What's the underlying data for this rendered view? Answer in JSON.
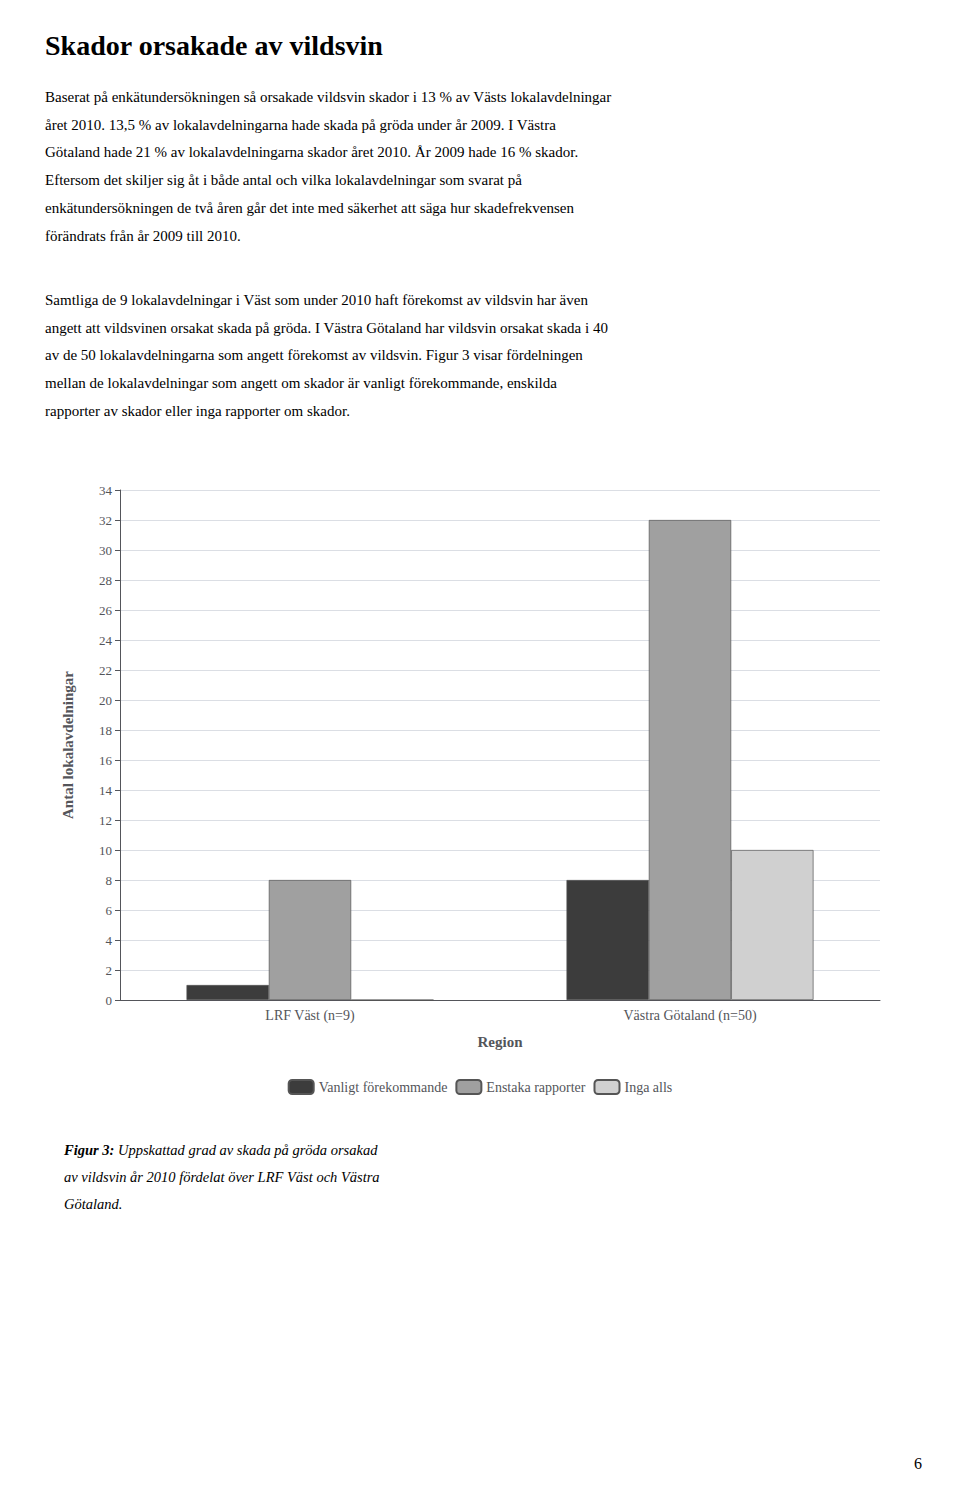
{
  "chart_data": {
    "type": "bar",
    "title": "Skador orsakade av vildsvin",
    "categories": [
      "LRF Väst (n=9)",
      "Västra Götaland (n=50)"
    ],
    "series": [
      {
        "name": "Vanligt förekommande",
        "color": "#3c3c3c",
        "values": [
          1,
          8
        ]
      },
      {
        "name": "Enstaka rapporter",
        "color": "#a0a0a0",
        "values": [
          8,
          32
        ]
      },
      {
        "name": "Inga alls",
        "color": "#d0d0d0",
        "values": [
          0,
          10
        ]
      }
    ],
    "xlabel": "Region",
    "ylabel": "Antal lokalavdelningar",
    "ylim": [
      0,
      34
    ],
    "yticks": [
      0,
      2,
      4,
      6,
      8,
      10,
      12,
      14,
      16,
      18,
      20,
      22,
      24,
      26,
      28,
      30,
      32,
      34
    ],
    "grid": true,
    "legend": "bottom",
    "annotations": [
      [
        "Baserat på enkätundersökningen så orsakade vildsvin skador i 13 % av Västs lokalavdelningar",
        "året 2010. 13,5 % av lokalavdelningarna hade skada på gröda under år 2009. I Västra",
        "Götaland hade 21 % av lokalavdelningarna skador året 2010. År 2009 hade 16 % skador.",
        "Eftersom det skiljer sig åt i både antal och vilka lokalavdelningar som svarat på",
        "enkätundersökningen de två åren går det inte med säkerhet att säga hur skadefrekvensen",
        "förändrats från år 2009 till 2010."
      ],
      [
        "Samtliga de 9 lokalavdelningar i Väst som under 2010 haft förekomst av vildsvin har även",
        "angett att vildsvinen orsakat skada på gröda. I Västra Götaland har vildsvin orsakat skada i 40",
        "av de 50 lokalavdelningarna som angett förekomst av vildsvin. Figur 3 visar fördelningen",
        "mellan de lokalavdelningar som angett om skador är vanligt förekommande, enskilda",
        "rapporter av skador eller inga rapporter om skador."
      ],
      [
        "Figur 3: Uppskattad grad av skada på gröda orsakad",
        "av vildsvin år 2010 fördelat över LRF Väst och Västra",
        "Götaland."
      ],
      [
        "6"
      ]
    ]
  }
}
